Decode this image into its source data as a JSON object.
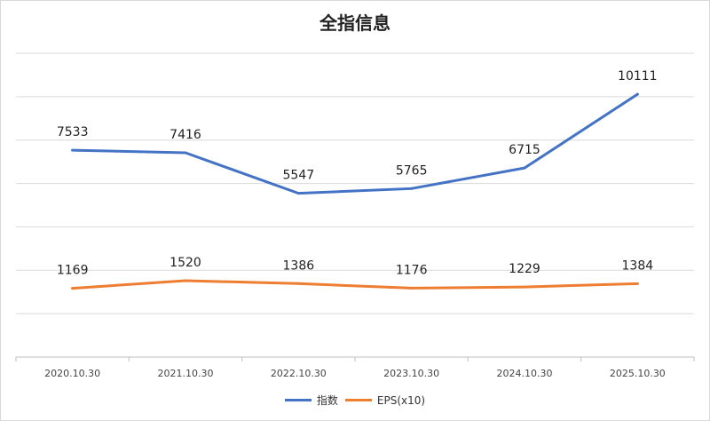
{
  "chart_data": {
    "type": "line",
    "title": "全指信息",
    "categories": [
      "2020.10.30",
      "2021.10.30",
      "2022.10.30",
      "2023.10.30",
      "2024.10.30",
      "2025.10.30"
    ],
    "series": [
      {
        "name": "指数",
        "values": [
          7533,
          7416,
          5547,
          5765,
          6715,
          10111
        ],
        "color": "#4472C4"
      },
      {
        "name": "EPS(x10)",
        "values": [
          1169,
          1520,
          1386,
          1176,
          1229,
          1384
        ],
        "color": "#ED7D31"
      }
    ],
    "ylim": [
      -2000,
      12000
    ],
    "grid": true,
    "legend": "bottom"
  }
}
